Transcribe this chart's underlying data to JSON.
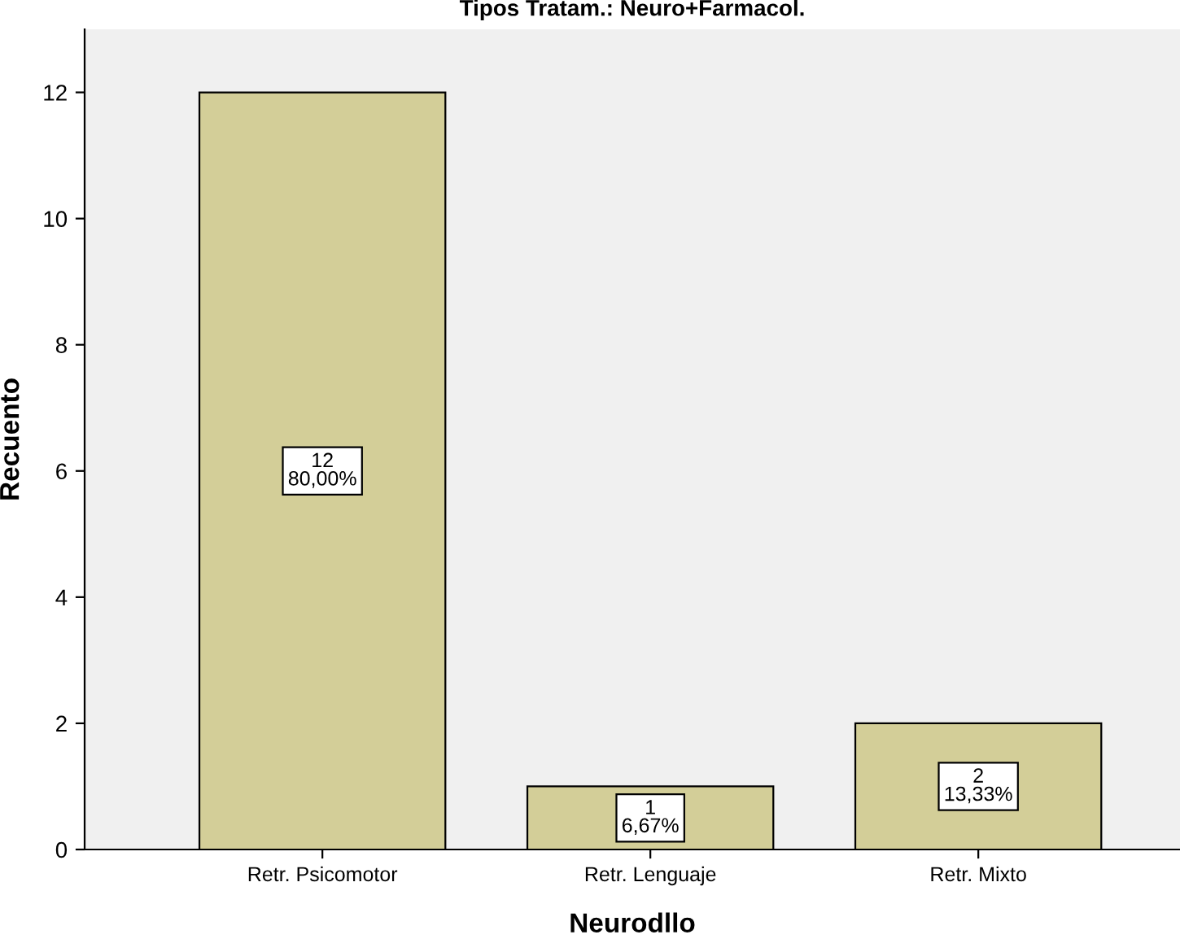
{
  "chart_data": {
    "type": "bar",
    "title": "Tipos Tratam.: Neuro+Farmacol.",
    "xlabel": "Neurodllo",
    "ylabel": "Recuento",
    "categories": [
      "Retr. Psicomotor",
      "Retr. Lenguaje",
      "Retr. Mixto"
    ],
    "values": [
      12,
      1,
      2
    ],
    "color": "#d3ce98",
    "value_labels": [
      "12\n80,00%",
      "1\n6,67%",
      "2\n13,33%"
    ],
    "ylim": [
      0,
      13
    ],
    "yticks": [
      0,
      2,
      4,
      6,
      8,
      10,
      12
    ],
    "grid": false
  }
}
